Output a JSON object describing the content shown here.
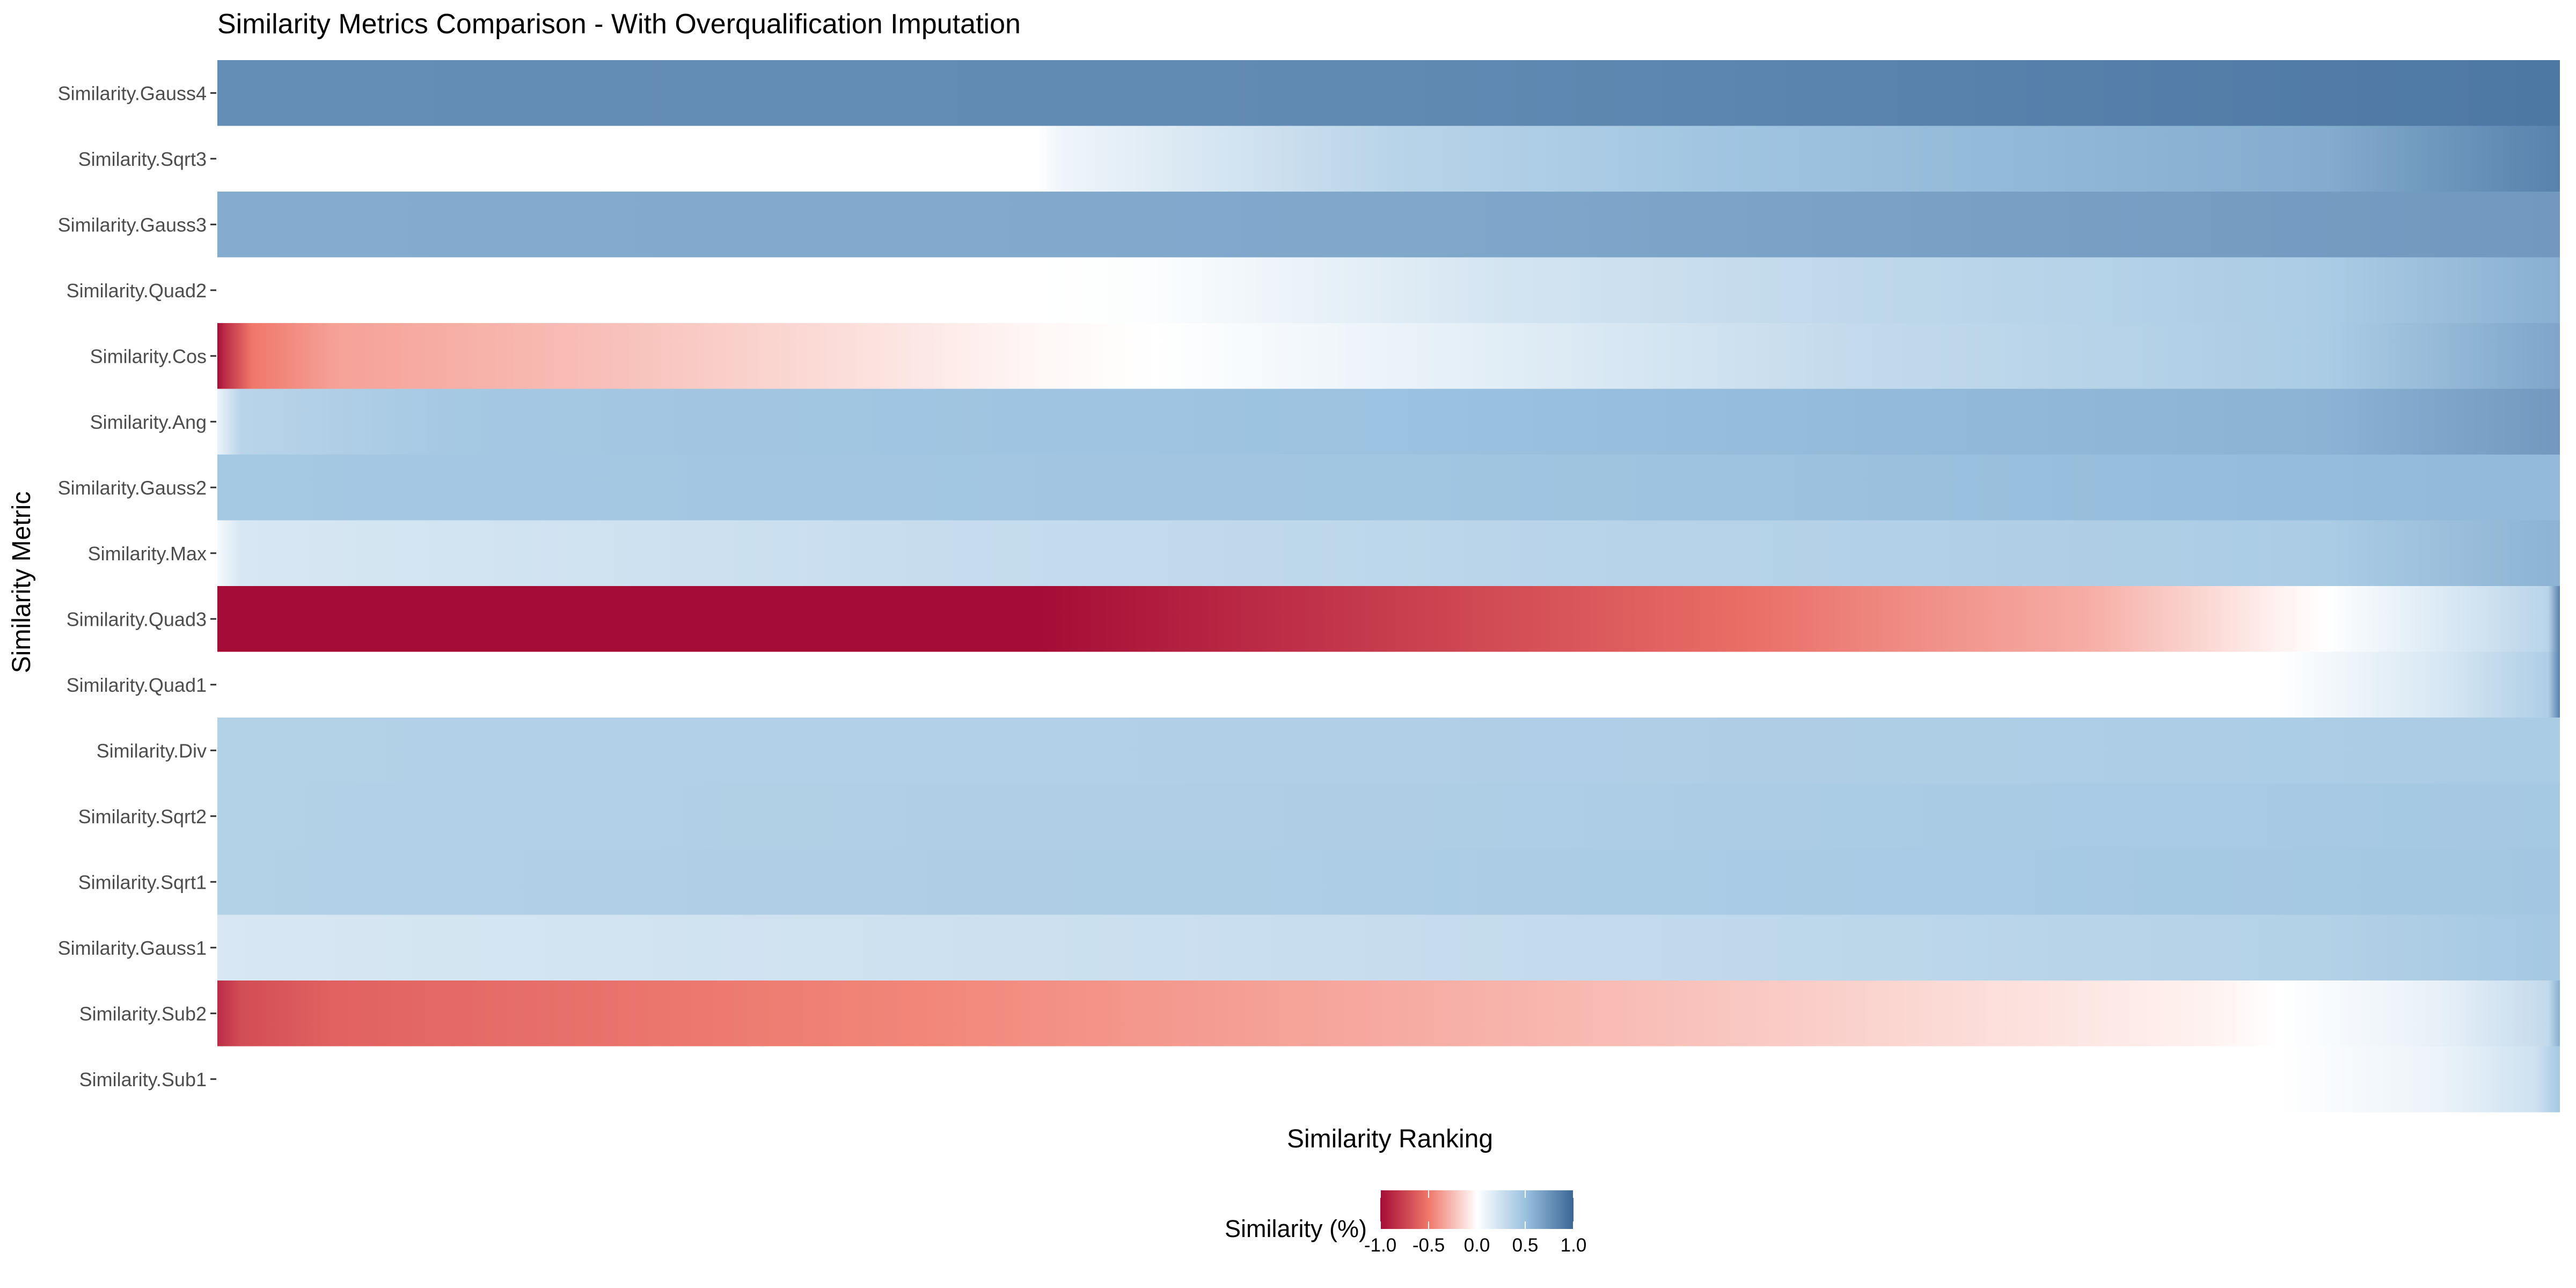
{
  "chart_data": {
    "type": "heatmap",
    "title": "Similarity Metrics Comparison - With Overqualification Imputation",
    "xlabel": "Similarity Ranking",
    "ylabel": "Similarity Metric",
    "grid": false,
    "legend": {
      "title": "Similarity (%)",
      "position": "bottom",
      "ticks": [
        -1.0,
        -0.5,
        0.0,
        0.5,
        1.0
      ],
      "tick_labels": [
        "-1.0",
        "-0.5",
        "0.0",
        "0.5",
        "1.0"
      ],
      "range": [
        -1,
        1
      ]
    },
    "colors": {
      "low": "#a50c36",
      "mid_low": "#f0786a",
      "mid": "#ffffff",
      "mid_high": "#9bc2e0",
      "high": "#3b6595"
    },
    "x_range": [
      0,
      1
    ],
    "rows": [
      {
        "name": "Similarity.Gauss4",
        "stops": [
          [
            0.0,
            0.78
          ],
          [
            0.5,
            0.8
          ],
          [
            1.0,
            0.9
          ]
        ]
      },
      {
        "name": "Similarity.Sqrt3",
        "stops": [
          [
            0.0,
            0.0
          ],
          [
            0.35,
            0.0
          ],
          [
            0.36,
            0.08
          ],
          [
            0.5,
            0.35
          ],
          [
            0.65,
            0.48
          ],
          [
            0.9,
            0.62
          ],
          [
            1.0,
            0.85
          ]
        ]
      },
      {
        "name": "Similarity.Gauss3",
        "stops": [
          [
            0.0,
            0.62
          ],
          [
            0.5,
            0.64
          ],
          [
            1.0,
            0.72
          ]
        ]
      },
      {
        "name": "Similarity.Quad2",
        "stops": [
          [
            0.0,
            0.0
          ],
          [
            0.35,
            0.0
          ],
          [
            0.4,
            0.02
          ],
          [
            0.55,
            0.22
          ],
          [
            0.7,
            0.32
          ],
          [
            0.9,
            0.42
          ],
          [
            1.0,
            0.6
          ]
        ]
      },
      {
        "name": "Similarity.Cos",
        "stops": [
          [
            0.0,
            -1.0
          ],
          [
            0.003,
            -0.85
          ],
          [
            0.015,
            -0.5
          ],
          [
            0.05,
            -0.35
          ],
          [
            0.2,
            -0.2
          ],
          [
            0.35,
            -0.03
          ],
          [
            0.4,
            0.0
          ],
          [
            0.55,
            0.15
          ],
          [
            0.7,
            0.3
          ],
          [
            0.9,
            0.42
          ],
          [
            1.0,
            0.65
          ]
        ]
      },
      {
        "name": "Similarity.Ang",
        "stops": [
          [
            0.0,
            0.1
          ],
          [
            0.01,
            0.35
          ],
          [
            0.1,
            0.45
          ],
          [
            0.5,
            0.5
          ],
          [
            0.9,
            0.58
          ],
          [
            1.0,
            0.72
          ]
        ]
      },
      {
        "name": "Similarity.Gauss2",
        "stops": [
          [
            0.0,
            0.45
          ],
          [
            0.5,
            0.47
          ],
          [
            1.0,
            0.55
          ]
        ]
      },
      {
        "name": "Similarity.Max",
        "stops": [
          [
            0.0,
            0.05
          ],
          [
            0.01,
            0.2
          ],
          [
            0.3,
            0.28
          ],
          [
            0.6,
            0.36
          ],
          [
            0.9,
            0.42
          ],
          [
            1.0,
            0.58
          ]
        ]
      },
      {
        "name": "Similarity.Quad3",
        "stops": [
          [
            0.0,
            -1.0
          ],
          [
            0.35,
            -1.0
          ],
          [
            0.45,
            -0.85
          ],
          [
            0.55,
            -0.7
          ],
          [
            0.65,
            -0.55
          ],
          [
            0.8,
            -0.3
          ],
          [
            0.88,
            -0.05
          ],
          [
            0.9,
            0.0
          ],
          [
            0.97,
            0.25
          ],
          [
            0.995,
            0.35
          ],
          [
            1.0,
            0.85
          ]
        ]
      },
      {
        "name": "Similarity.Quad1",
        "stops": [
          [
            0.0,
            0.0
          ],
          [
            0.88,
            0.0
          ],
          [
            0.95,
            0.2
          ],
          [
            0.995,
            0.4
          ],
          [
            1.0,
            0.85
          ]
        ]
      },
      {
        "name": "Similarity.Div",
        "stops": [
          [
            0.0,
            0.38
          ],
          [
            0.5,
            0.39
          ],
          [
            1.0,
            0.42
          ]
        ]
      },
      {
        "name": "Similarity.Sqrt2",
        "stops": [
          [
            0.0,
            0.38
          ],
          [
            0.5,
            0.4
          ],
          [
            1.0,
            0.45
          ]
        ]
      },
      {
        "name": "Similarity.Sqrt1",
        "stops": [
          [
            0.0,
            0.38
          ],
          [
            0.5,
            0.41
          ],
          [
            1.0,
            0.46
          ]
        ]
      },
      {
        "name": "Similarity.Gauss1",
        "stops": [
          [
            0.0,
            0.2
          ],
          [
            0.5,
            0.28
          ],
          [
            0.9,
            0.38
          ],
          [
            1.0,
            0.45
          ]
        ]
      },
      {
        "name": "Similarity.Sub2",
        "stops": [
          [
            0.0,
            -0.85
          ],
          [
            0.01,
            -0.7
          ],
          [
            0.05,
            -0.6
          ],
          [
            0.3,
            -0.45
          ],
          [
            0.6,
            -0.25
          ],
          [
            0.85,
            -0.05
          ],
          [
            0.88,
            0.0
          ],
          [
            0.95,
            0.12
          ],
          [
            0.995,
            0.3
          ],
          [
            1.0,
            0.6
          ]
        ]
      },
      {
        "name": "Similarity.Sub1",
        "stops": [
          [
            0.0,
            0.0
          ],
          [
            0.88,
            0.0
          ],
          [
            0.95,
            0.1
          ],
          [
            0.99,
            0.25
          ],
          [
            1.0,
            0.45
          ]
        ]
      }
    ]
  }
}
